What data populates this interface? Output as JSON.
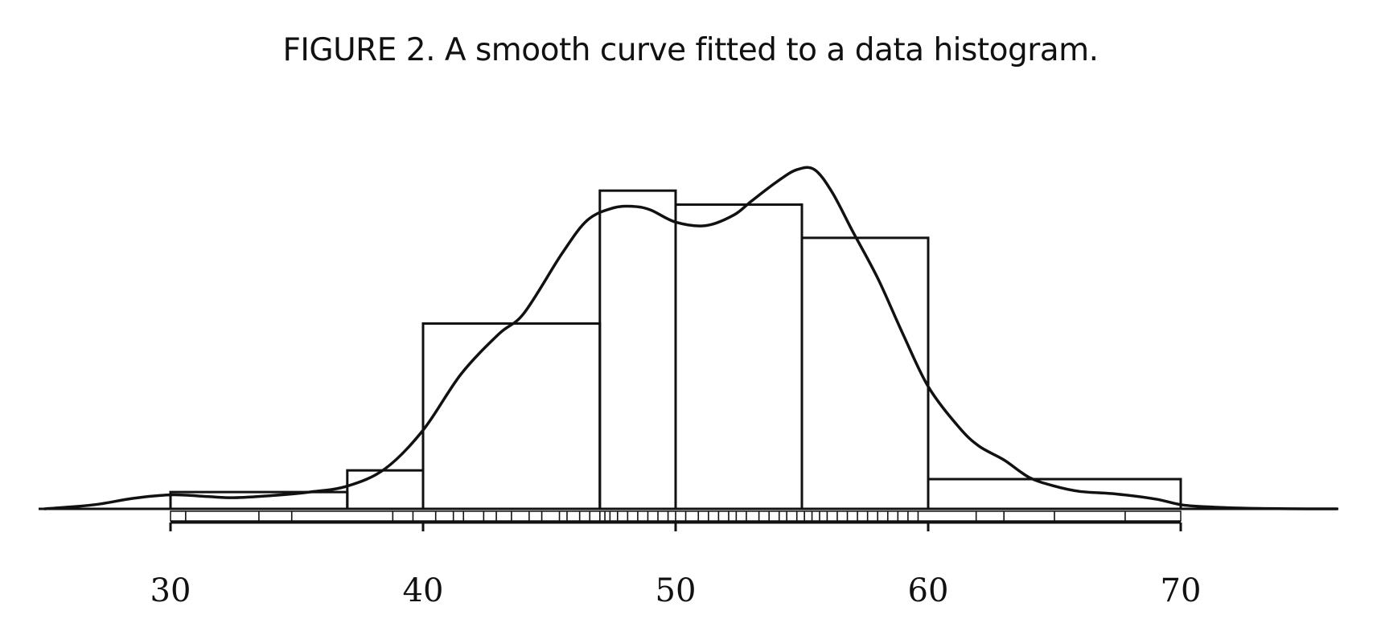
{
  "chart_data": {
    "type": "bar",
    "title": "FIGURE 2. A smooth curve fitted to a data histogram.",
    "xlabel": "",
    "ylabel": "",
    "xlim": [
      25.0,
      76.2
    ],
    "ylim": [
      0,
      1.0
    ],
    "x_ticks": [
      30,
      40,
      50,
      60,
      70
    ],
    "histogram_bins": [
      {
        "x0": 30,
        "x1": 37,
        "value": 0.048
      },
      {
        "x0": 37,
        "x1": 40,
        "value": 0.11
      },
      {
        "x0": 40,
        "x1": 47,
        "value": 0.53
      },
      {
        "x0": 47,
        "x1": 50,
        "value": 0.91
      },
      {
        "x0": 50,
        "x1": 55,
        "value": 0.87
      },
      {
        "x0": 55,
        "x1": 60,
        "value": 0.775
      },
      {
        "x0": 60,
        "x1": 70,
        "value": 0.085
      }
    ],
    "series": [
      {
        "type": "line",
        "x": [
          25,
          27,
          28.5,
          30,
          31.5,
          32.5,
          34,
          35.5,
          37,
          38.5,
          40,
          41.5,
          43,
          44,
          45.5,
          46.5,
          47.5,
          48.3,
          49,
          50,
          51.2,
          52.3,
          53,
          54,
          54.8,
          55.5,
          56.2,
          57,
          58,
          59,
          60,
          61.2,
          62,
          63,
          64,
          65,
          66,
          67.5,
          69,
          70,
          71,
          72.5,
          73.5,
          75,
          76.2
        ],
        "values": [
          0.0,
          0.012,
          0.03,
          0.04,
          0.035,
          0.032,
          0.038,
          0.048,
          0.065,
          0.115,
          0.225,
          0.385,
          0.5,
          0.56,
          0.73,
          0.825,
          0.86,
          0.865,
          0.855,
          0.82,
          0.81,
          0.84,
          0.88,
          0.935,
          0.97,
          0.97,
          0.905,
          0.795,
          0.66,
          0.5,
          0.35,
          0.235,
          0.18,
          0.14,
          0.09,
          0.065,
          0.05,
          0.042,
          0.028,
          0.012,
          0.006,
          0.002,
          0.001,
          0.0,
          0.0
        ]
      }
    ],
    "rug": [
      30.6,
      33.5,
      34.8,
      38.8,
      39.6,
      40.5,
      41.2,
      41.6,
      42.4,
      42.9,
      43.5,
      44.2,
      44.7,
      45.4,
      45.7,
      46.2,
      46.6,
      47.0,
      47.2,
      47.4,
      47.7,
      48.1,
      48.5,
      48.9,
      49.3,
      49.7,
      50.0,
      50.4,
      50.9,
      51.3,
      51.7,
      52.1,
      52.4,
      52.8,
      53.3,
      53.7,
      54.1,
      54.4,
      54.8,
      55.1,
      55.4,
      55.7,
      56.0,
      56.4,
      56.8,
      57.2,
      57.6,
      58.0,
      58.4,
      58.8,
      59.2,
      59.6,
      61.9,
      63.0,
      65.0,
      67.8
    ],
    "grid": false,
    "legend": "none"
  }
}
